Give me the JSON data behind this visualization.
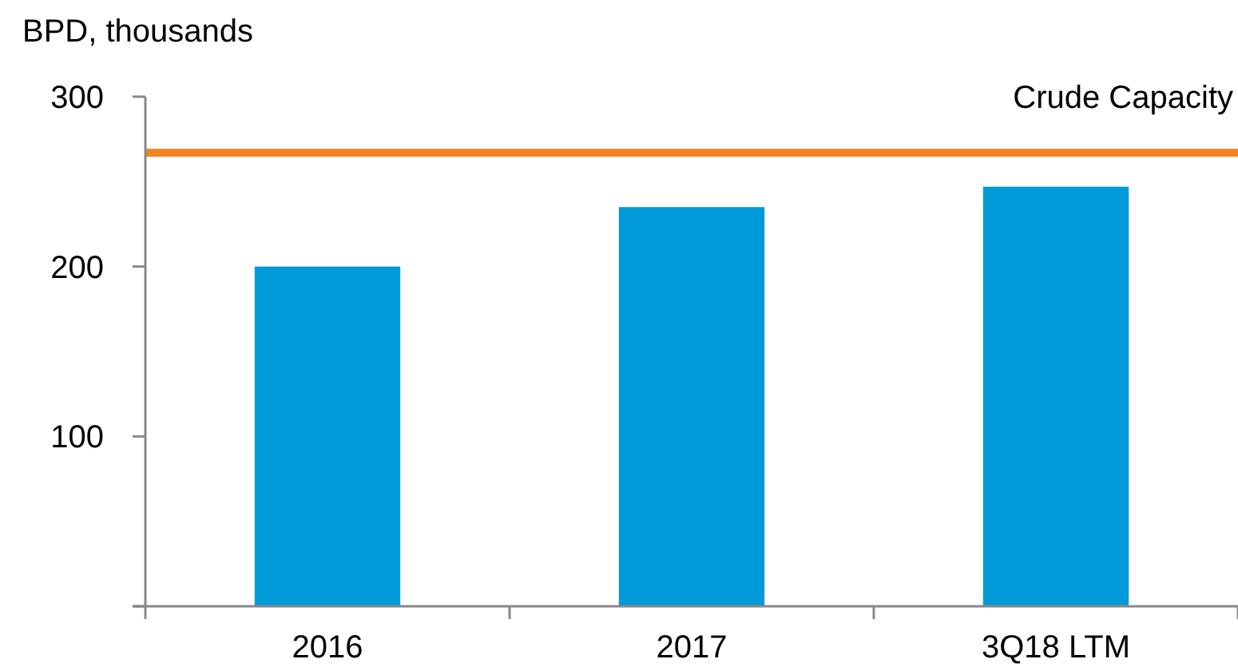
{
  "chart_data": {
    "type": "bar",
    "ylabel": "BPD, thousands",
    "categories": [
      "2016",
      "2017",
      "3Q18 LTM"
    ],
    "values": [
      200,
      235,
      247
    ],
    "color": "#009ad8",
    "ylim": [
      0,
      300
    ],
    "yticks": [
      {
        "value": 0,
        "label": null
      },
      100,
      200,
      300
    ],
    "grid": false,
    "ref_lines": [
      {
        "axis": "y",
        "value": 267,
        "label": "Crude Capacity",
        "color": "#f58220"
      }
    ]
  }
}
